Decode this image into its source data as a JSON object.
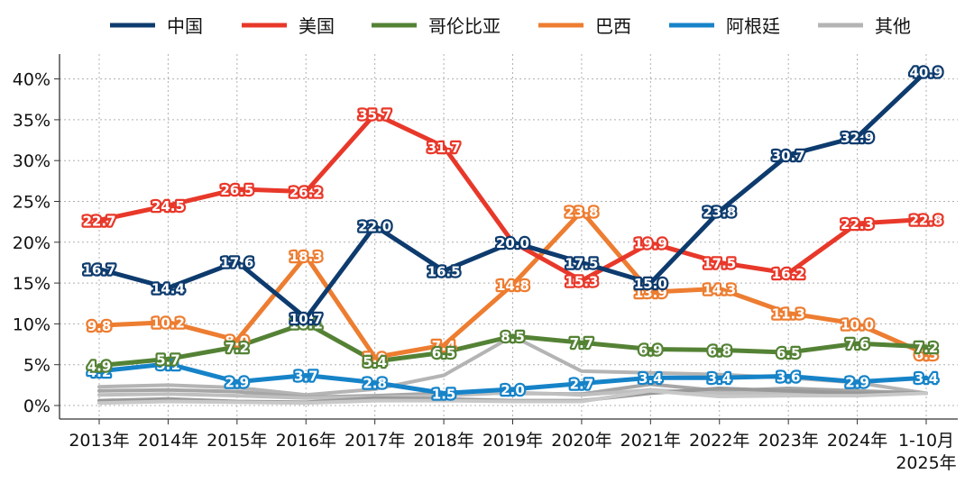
{
  "chart_data": {
    "type": "line",
    "categories": [
      "2013年",
      "2014年",
      "2015年",
      "2016年",
      "2017年",
      "2018年",
      "2019年",
      "2020年",
      "2021年",
      "2022年",
      "2023年",
      "2024年",
      [
        "1-10月",
        "2025年"
      ]
    ],
    "ylim": [
      0,
      45
    ],
    "yticks": [
      0,
      5,
      10,
      15,
      20,
      25,
      30,
      35,
      40
    ],
    "ytick_suffix": "%",
    "grid": true,
    "legend_position": "top",
    "series": [
      {
        "name": "中国",
        "color": "#0d3b6e",
        "labeled": true,
        "values": [
          16.7,
          14.4,
          17.6,
          10.7,
          22.0,
          16.5,
          20.0,
          17.5,
          15.0,
          23.8,
          30.7,
          32.9,
          40.9
        ],
        "labels": [
          "16.7",
          "14.4",
          "17.6",
          "10.7",
          "22.0",
          "16.5",
          "20.0",
          "17.5",
          "15.0",
          "23.8",
          "30.7",
          "32.9",
          "40.9"
        ]
      },
      {
        "name": "美国",
        "color": "#e8382a",
        "labeled": true,
        "values": [
          22.7,
          24.5,
          26.5,
          26.2,
          35.7,
          31.7,
          20.0,
          15.3,
          19.9,
          17.5,
          16.2,
          22.3,
          22.8
        ],
        "labels": [
          "22.7",
          "24.5",
          "26.5",
          "26.2",
          "35.7",
          "31.7",
          "",
          "15.3",
          "19.9",
          "17.5",
          "16.2",
          "22.3",
          "22.8"
        ]
      },
      {
        "name": "哥伦比亚",
        "color": "#548235",
        "labeled": true,
        "values": [
          4.9,
          5.7,
          7.2,
          10.1,
          5.4,
          6.5,
          8.5,
          7.7,
          6.9,
          6.8,
          6.5,
          7.6,
          7.2
        ],
        "labels": [
          "4.9",
          "5.7",
          "7.2",
          "10.1",
          "5.4",
          "6.5",
          "8.5",
          "7.7",
          "6.9",
          "6.8",
          "6.5",
          "7.6",
          "7.2"
        ]
      },
      {
        "name": "巴西",
        "color": "#ed7d31",
        "labeled": true,
        "values": [
          9.8,
          10.2,
          8.0,
          18.3,
          5.9,
          7.4,
          14.8,
          23.8,
          13.9,
          14.3,
          11.3,
          10.0,
          6.3
        ],
        "labels": [
          "9.8",
          "10.2",
          "8.0",
          "18.3",
          "5.9",
          "7.4",
          "14.8",
          "23.8",
          "13.9",
          "14.3",
          "11.3",
          "10.0",
          "6.3"
        ]
      },
      {
        "name": "阿根廷",
        "color": "#1683c8",
        "labeled": true,
        "values": [
          4.2,
          5.1,
          2.9,
          3.7,
          2.8,
          1.5,
          2.0,
          2.7,
          3.4,
          3.4,
          3.6,
          2.9,
          3.4
        ],
        "labels": [
          "4.2",
          "5.1",
          "2.9",
          "3.7",
          "2.8",
          "1.5",
          "2.0",
          "2.7",
          "3.4",
          "3.4",
          "3.6",
          "2.9",
          "3.4"
        ]
      },
      {
        "name": "其他",
        "color": "#b4b4b4",
        "labeled": false,
        "values": [
          2.3,
          2.5,
          2.2,
          1.3,
          2.0,
          3.7,
          8.5,
          4.2,
          4.0,
          3.8,
          3.4,
          2.8,
          1.5
        ]
      },
      {
        "name": "",
        "color": "#a6a6a6",
        "labeled": false,
        "values": [
          1.8,
          1.9,
          1.7,
          1.0,
          1.2,
          1.5,
          1.5,
          1.4,
          2.6,
          1.8,
          2.1,
          1.8,
          1.5
        ]
      },
      {
        "name": "",
        "color": "#bfbfbf",
        "labeled": false,
        "values": [
          1.3,
          1.4,
          1.2,
          0.9,
          1.0,
          1.2,
          1.6,
          1.3,
          1.9,
          1.5,
          1.6,
          1.4,
          1.5
        ]
      },
      {
        "name": "",
        "color": "#999999",
        "labeled": false,
        "values": [
          0.6,
          0.8,
          0.5,
          0.4,
          0.9,
          0.8,
          0.6,
          0.6,
          1.5,
          2.1,
          1.8,
          1.5,
          1.5
        ]
      },
      {
        "name": "",
        "color": "#c8c8c8",
        "labeled": false,
        "values": [
          0.3,
          0.5,
          0.4,
          0.3,
          0.6,
          0.6,
          0.5,
          0.5,
          1.8,
          1.1,
          1.2,
          1.2,
          1.5
        ]
      }
    ],
    "legend": [
      "中国",
      "美国",
      "哥伦比亚",
      "巴西",
      "阿根廷",
      "其他"
    ]
  }
}
